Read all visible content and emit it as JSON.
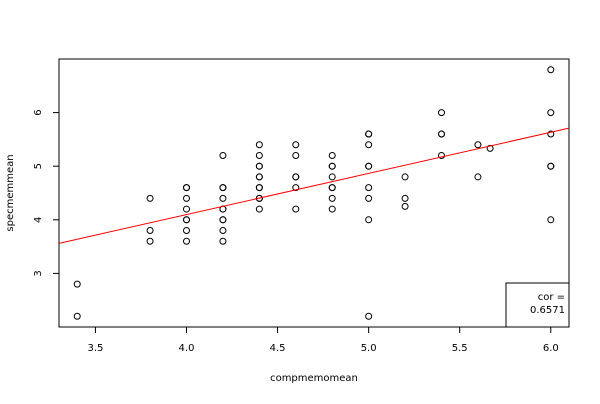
{
  "chart_data": {
    "type": "scatter",
    "x_label": "compmemomean",
    "y_label": "specmemmean",
    "x": [
      3.4,
      3.4,
      3.8,
      3.8,
      3.8,
      4.0,
      4.0,
      4.0,
      4.0,
      4.0,
      4.0,
      4.0,
      4.0,
      4.2,
      4.2,
      4.2,
      4.2,
      4.2,
      4.2,
      4.2,
      4.2,
      4.2,
      4.2,
      4.4,
      4.4,
      4.4,
      4.4,
      4.4,
      4.4,
      4.4,
      4.4,
      4.4,
      4.4,
      4.4,
      4.6,
      4.6,
      4.6,
      4.6,
      4.6,
      4.6,
      4.8,
      4.8,
      4.8,
      4.8,
      4.8,
      4.8,
      4.8,
      4.8,
      5.0,
      5.0,
      5.0,
      5.0,
      5.0,
      5.0,
      5.0,
      5.0,
      5.0,
      5.2,
      5.2,
      5.2,
      5.4,
      5.4,
      5.4,
      5.4,
      5.6,
      5.6,
      5.667,
      6.0,
      6.0,
      6.0,
      6.0,
      6.0,
      6.0
    ],
    "y": [
      2.8,
      2.2,
      4.4,
      3.8,
      3.6,
      4.6,
      4.6,
      4.4,
      4.2,
      4.0,
      4.0,
      3.8,
      3.6,
      5.2,
      4.6,
      4.6,
      4.4,
      4.2,
      4.2,
      4.0,
      4.0,
      3.8,
      3.6,
      5.4,
      5.2,
      5.0,
      5.0,
      4.8,
      4.8,
      4.6,
      4.6,
      4.4,
      4.4,
      4.2,
      5.4,
      5.2,
      4.8,
      4.8,
      4.6,
      4.2,
      5.2,
      5.0,
      5.0,
      4.8,
      4.6,
      4.6,
      4.4,
      4.2,
      5.6,
      5.6,
      5.4,
      5.0,
      5.0,
      4.6,
      4.4,
      4.0,
      2.2,
      4.8,
      4.4,
      4.25,
      6.0,
      5.6,
      5.6,
      5.2,
      5.4,
      4.8,
      5.333,
      6.8,
      6.0,
      5.6,
      5.0,
      5.0,
      4.0
    ],
    "point_color": "#000000",
    "trend_line": {
      "x": [
        3.3,
        6.1
      ],
      "y": [
        3.56,
        5.71
      ],
      "color": "#ff0000"
    },
    "annotation": [
      "cor =",
      "0.6571"
    ],
    "xlim": [
      3.3,
      6.1
    ],
    "ylim": [
      2.0,
      7.0
    ],
    "xticks": [
      3.5,
      {
        "value": 4,
        "label": "4.0"
      },
      4.5,
      {
        "value": 5,
        "label": "5.0"
      },
      5.5,
      {
        "value": 6,
        "label": "6.0"
      }
    ],
    "yticks": [
      3,
      4,
      5,
      6
    ]
  }
}
